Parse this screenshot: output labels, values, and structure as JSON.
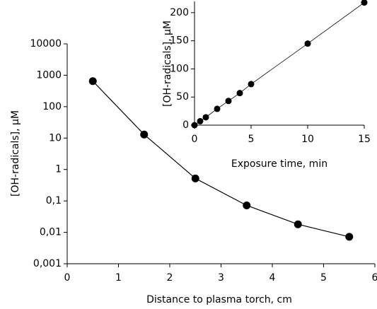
{
  "chart_data": [
    {
      "type": "line",
      "xlabel": "Distance to plasma torch, cm",
      "ylabel": "[OH-radicals], μM",
      "x": [
        0.5,
        1.5,
        2.5,
        3.5,
        4.5,
        5.5
      ],
      "series": [
        {
          "color": "#000000",
          "values": [
            650,
            13,
            0.52,
            0.072,
            0.018,
            0.0072
          ]
        }
      ],
      "xlim": [
        0,
        6
      ],
      "xticks": [
        0,
        1,
        2,
        3,
        4,
        5,
        6
      ],
      "yscale": "log",
      "ylim": [
        0.001,
        10000
      ],
      "yticks": [
        {
          "value": 0.001,
          "label": "0,001"
        },
        {
          "value": 0.01,
          "label": "0,01"
        },
        {
          "value": 0.1,
          "label": "0,1"
        },
        1,
        10,
        100,
        1000,
        10000
      ]
    },
    {
      "type": "line",
      "xlabel": "Exposure time, min",
      "ylabel": "[OH-radicals], μM",
      "x": [
        0,
        0.5,
        1,
        2,
        3,
        4,
        5,
        10,
        15
      ],
      "series": [
        {
          "color": "#000000",
          "values": [
            0,
            7,
            14,
            29,
            43,
            57,
            73,
            145,
            218
          ]
        }
      ],
      "xlim": [
        0,
        15
      ],
      "xticks": [
        0,
        5,
        10,
        15
      ],
      "ylim": [
        0,
        220
      ],
      "yticks": [
        0,
        50,
        100,
        150,
        200
      ]
    }
  ]
}
